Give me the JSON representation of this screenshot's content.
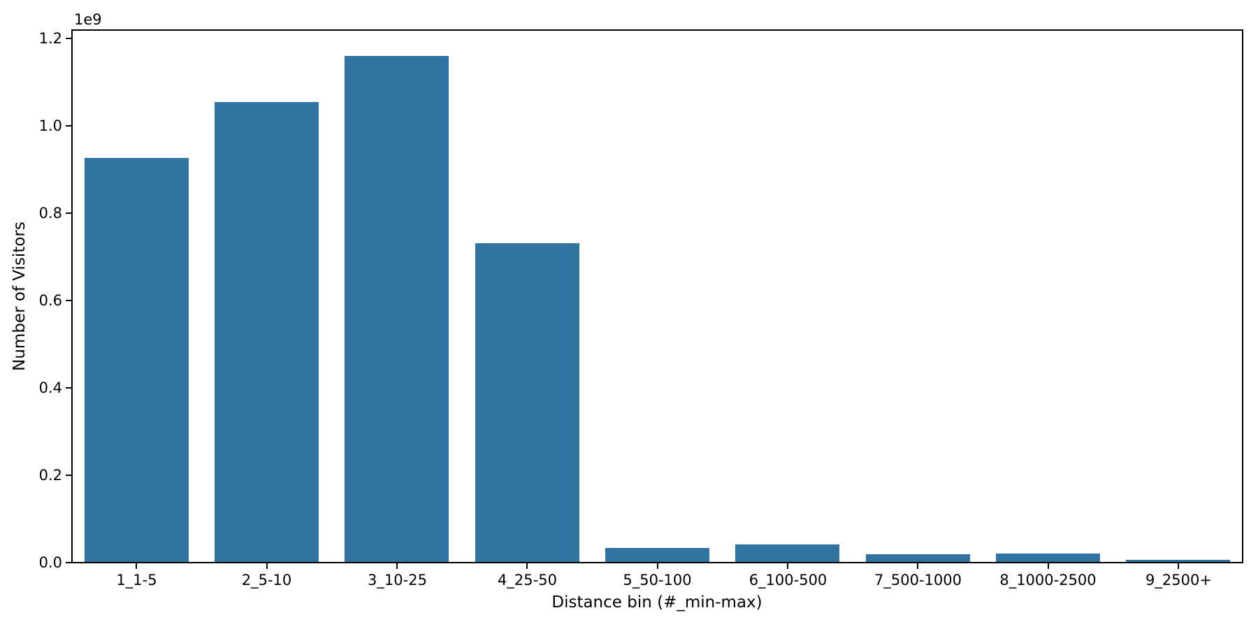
{
  "chart_data": {
    "type": "bar",
    "title": "",
    "xlabel": "Distance bin (#_min-max)",
    "ylabel": "Number of Visitors",
    "offset_text": "1e9",
    "categories": [
      "1_1-5",
      "2_5-10",
      "3_10-25",
      "4_25-50",
      "5_50-100",
      "6_100-500",
      "7_500-1000",
      "8_1000-2500",
      "9_2500+"
    ],
    "values": [
      925000000,
      1052000000,
      1158000000,
      730000000,
      32000000,
      40000000,
      17000000,
      19000000,
      4000000
    ],
    "values_e9": [
      0.925,
      1.052,
      1.158,
      0.73,
      0.032,
      0.04,
      0.017,
      0.019,
      0.004
    ],
    "ytick_labels": [
      "0.0",
      "0.2",
      "0.4",
      "0.6",
      "0.8",
      "1.0",
      "1.2"
    ],
    "ytick_values_e9": [
      0.0,
      0.2,
      0.4,
      0.6,
      0.8,
      1.0,
      1.2
    ],
    "ylim_e9": [
      0.0,
      1.2192
    ],
    "bar_color": "#3274a1",
    "axis_color": "#000000",
    "grid": false,
    "legend_position": "none"
  }
}
